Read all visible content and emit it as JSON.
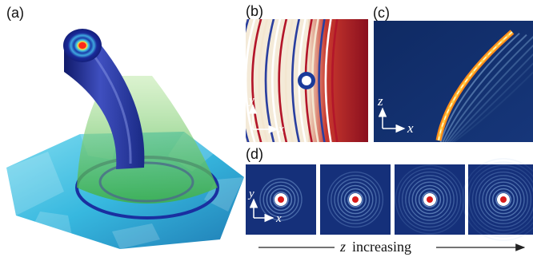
{
  "panels": {
    "a": {
      "label": "(a)"
    },
    "b": {
      "label": "(b)",
      "axis_x": "x",
      "axis_y": "y"
    },
    "c": {
      "label": "(c)",
      "axis_x": "x",
      "axis_y": "z"
    },
    "d": {
      "label": "(d)",
      "axis_x": "x",
      "axis_y": "y",
      "frame_count": 4
    }
  },
  "footer": {
    "z_symbol": "z",
    "caption": "increasing"
  },
  "colors": {
    "field_dark": "#0b1c4a",
    "field_mid": "#3c6fb5",
    "ring_blue": "#1a2fa0",
    "cone_green": "#59c04a",
    "surface_cyan": "#37c3e3",
    "beam_orange": "#ff8a1a",
    "fringe_red": "#b3162a"
  }
}
